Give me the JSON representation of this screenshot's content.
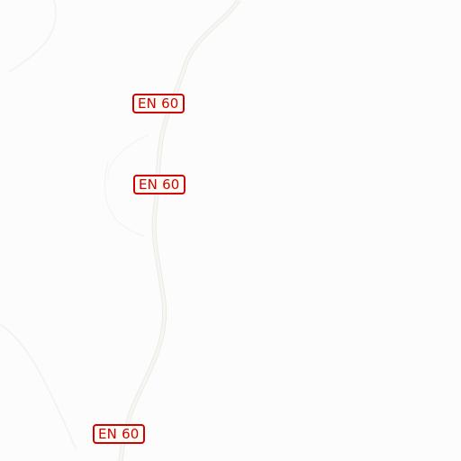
{
  "map": {
    "background_color": "#fcfcfc",
    "road_color": "#f2f2ee",
    "road_edge_color": "#e8e8e4",
    "shield_border_color": "#d10000",
    "shield_fill_color": "#fffef6"
  },
  "road_shields": [
    {
      "label": "EN 60"
    },
    {
      "label": "EN 60"
    },
    {
      "label": "EN 60"
    }
  ]
}
